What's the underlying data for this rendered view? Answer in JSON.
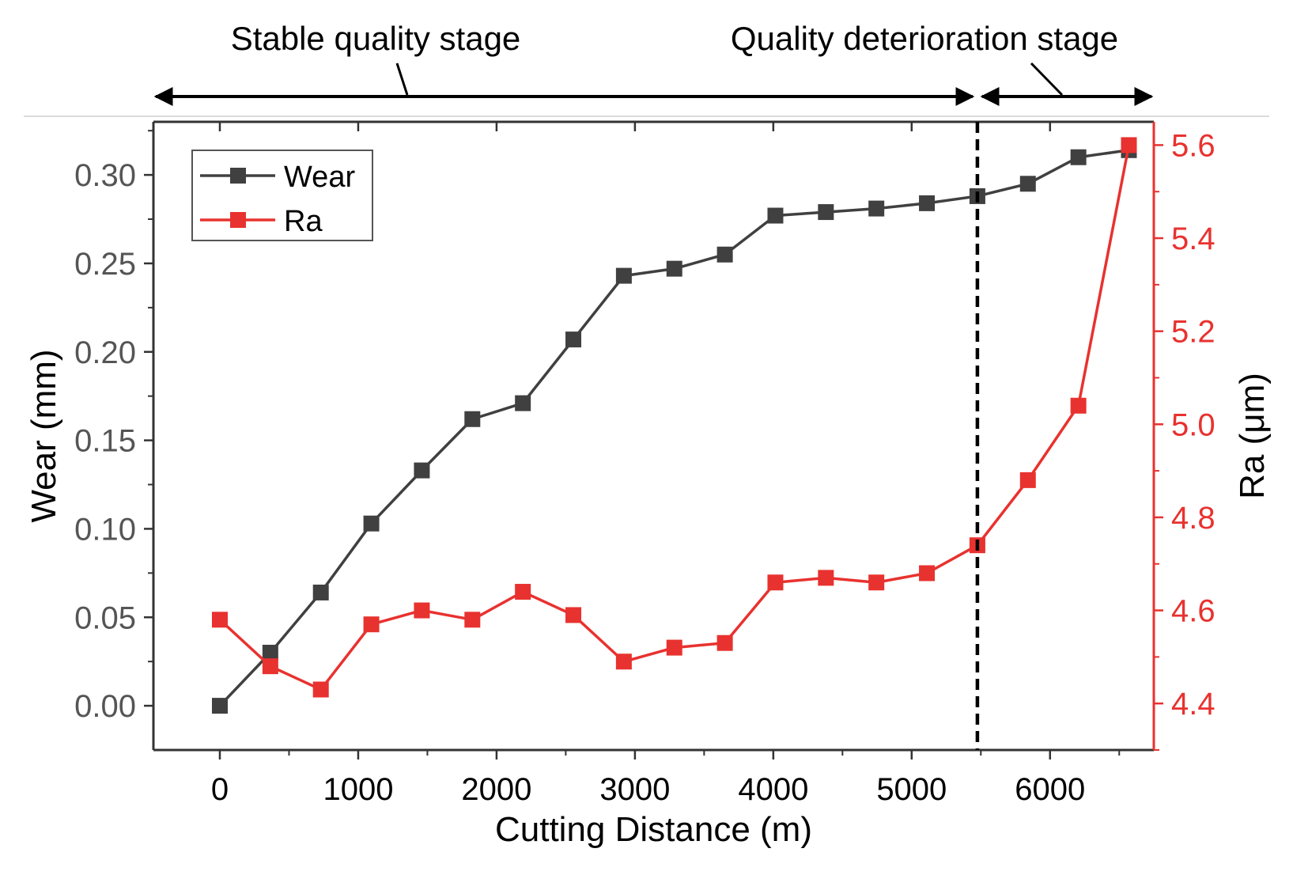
{
  "chart_data": {
    "type": "line",
    "xlabel": "Cutting Distance (m)",
    "ylabel": "Wear (mm)",
    "y2label": "Ra (μm)",
    "xlim": [
      -480,
      6750
    ],
    "ylim": [
      -0.025,
      0.33
    ],
    "y2lim": [
      4.3,
      5.65
    ],
    "x_ticks": [
      0,
      1000,
      2000,
      3000,
      4000,
      5000,
      6000
    ],
    "y_ticks": [
      "0.00",
      "0.05",
      "0.10",
      "0.15",
      "0.20",
      "0.25",
      "0.30"
    ],
    "y2_ticks": [
      "4.4",
      "4.6",
      "4.8",
      "5.0",
      "5.2",
      "5.4",
      "5.6"
    ],
    "x": [
      0,
      365,
      730,
      1095,
      1460,
      1825,
      2190,
      2555,
      2920,
      3285,
      3650,
      4015,
      4380,
      4745,
      5110,
      5475,
      5840,
      6205,
      6570
    ],
    "series": [
      {
        "name": "Wear",
        "axis": "left",
        "color": "#404040",
        "values": [
          0.0,
          0.03,
          0.064,
          0.103,
          0.133,
          0.162,
          0.171,
          0.207,
          0.243,
          0.247,
          0.255,
          0.277,
          0.279,
          0.281,
          0.284,
          0.288,
          0.295,
          0.31,
          0.314
        ]
      },
      {
        "name": "Ra",
        "axis": "right",
        "color": "#e8322f",
        "values": [
          4.58,
          4.48,
          4.43,
          4.57,
          4.6,
          4.58,
          4.64,
          4.59,
          4.49,
          4.52,
          4.53,
          4.66,
          4.67,
          4.66,
          4.68,
          4.74,
          4.88,
          5.04,
          5.6
        ]
      }
    ],
    "divider_x": 5475,
    "annotations": {
      "stage1": "Stable quality stage",
      "stage2": "Quality deterioration stage"
    },
    "legend_position": "top-left",
    "grid": false
  }
}
